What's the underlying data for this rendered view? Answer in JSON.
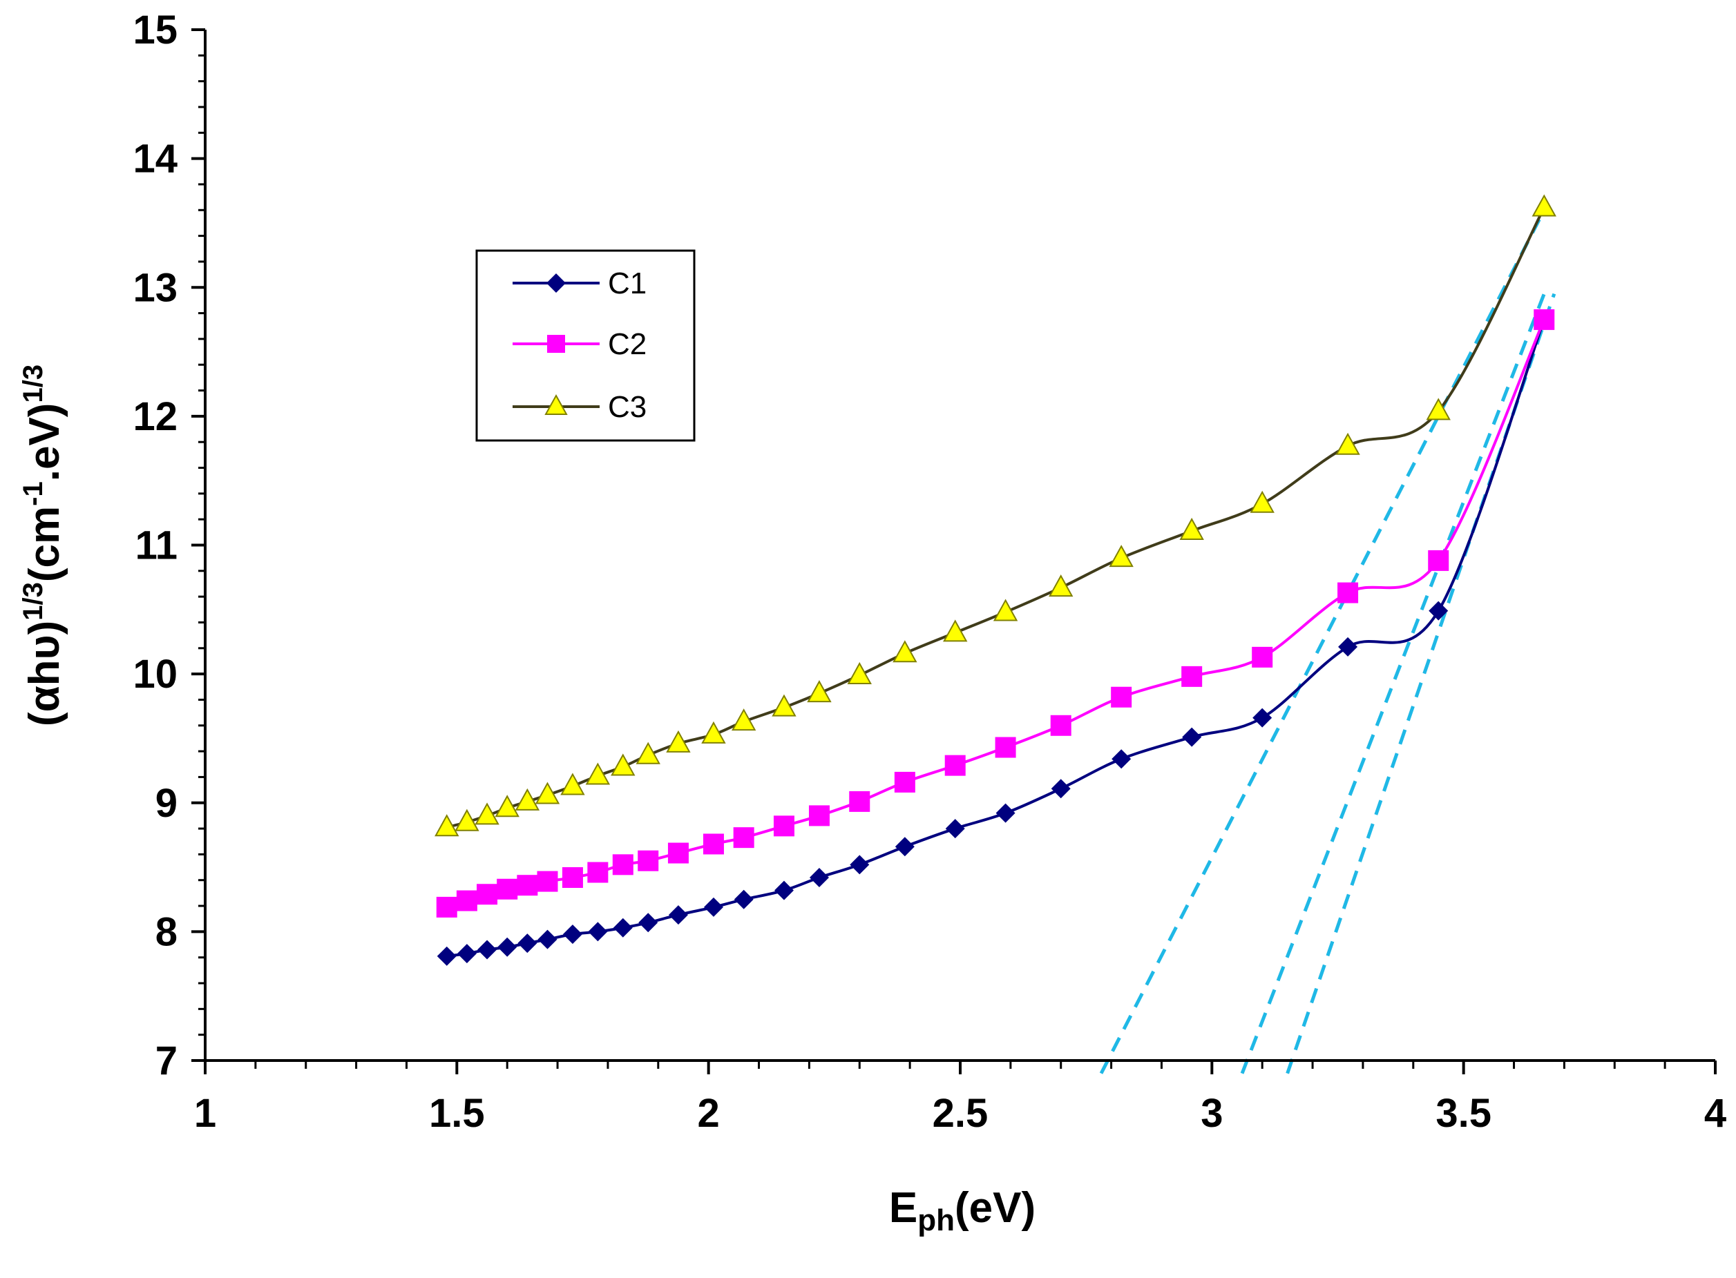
{
  "chart_data": {
    "type": "line",
    "title": "",
    "xlabel": {
      "main": "E",
      "sub": "ph",
      "rest": "(eV)"
    },
    "ylabel": {
      "part1": "(αhυ)",
      "sup1": "1/3",
      "part2": "(cm",
      "sup2": "-1",
      "part3": ".eV)",
      "sup3": "1/3"
    },
    "xlim": [
      1,
      4
    ],
    "ylim": [
      7,
      15
    ],
    "xticks": [
      1,
      1.5,
      2,
      2.5,
      3,
      3.5,
      4
    ],
    "xtick_labels": [
      "1",
      "1.5",
      "2",
      "2.5",
      "3",
      "3.5",
      "4"
    ],
    "yticks": [
      7,
      8,
      9,
      10,
      11,
      12,
      13,
      14,
      15
    ],
    "ytick_labels": [
      "7",
      "8",
      "9",
      "10",
      "11",
      "12",
      "13",
      "14",
      "15"
    ],
    "x_minor_step": 0.1,
    "y_minor_step": 0.2,
    "grid": false,
    "legend_position": "upper-left",
    "series": [
      {
        "name": "C1",
        "color": "#00007f",
        "marker": "diamond",
        "x": [
          1.48,
          1.52,
          1.56,
          1.6,
          1.64,
          1.68,
          1.73,
          1.78,
          1.83,
          1.88,
          1.94,
          2.01,
          2.07,
          2.15,
          2.22,
          2.3,
          2.39,
          2.49,
          2.59,
          2.7,
          2.82,
          2.96,
          3.1,
          3.27,
          3.45,
          3.66
        ],
        "y": [
          7.81,
          7.83,
          7.86,
          7.88,
          7.91,
          7.94,
          7.98,
          8.0,
          8.03,
          8.07,
          8.13,
          8.19,
          8.25,
          8.32,
          8.42,
          8.52,
          8.66,
          8.8,
          8.92,
          9.11,
          9.34,
          9.51,
          9.66,
          10.21,
          10.49,
          12.75
        ]
      },
      {
        "name": "C2",
        "color": "#ff00ff",
        "marker": "square",
        "x": [
          1.48,
          1.52,
          1.56,
          1.6,
          1.64,
          1.68,
          1.73,
          1.78,
          1.83,
          1.88,
          1.94,
          2.01,
          2.07,
          2.15,
          2.22,
          2.3,
          2.39,
          2.49,
          2.59,
          2.7,
          2.82,
          2.96,
          3.1,
          3.27,
          3.45,
          3.66
        ],
        "y": [
          8.19,
          8.24,
          8.29,
          8.33,
          8.36,
          8.39,
          8.42,
          8.46,
          8.52,
          8.55,
          8.61,
          8.68,
          8.73,
          8.82,
          8.9,
          9.01,
          9.16,
          9.29,
          9.43,
          9.6,
          9.82,
          9.98,
          10.13,
          10.63,
          10.88,
          12.75
        ]
      },
      {
        "name": "C3",
        "color": "#403c1a",
        "marker": "triangle",
        "marker_fill": "#ffff00",
        "x": [
          1.48,
          1.52,
          1.56,
          1.6,
          1.64,
          1.68,
          1.73,
          1.78,
          1.83,
          1.88,
          1.94,
          2.01,
          2.07,
          2.15,
          2.22,
          2.3,
          2.39,
          2.49,
          2.59,
          2.7,
          2.82,
          2.96,
          3.1,
          3.27,
          3.45,
          3.66
        ],
        "y": [
          8.81,
          8.85,
          8.9,
          8.96,
          9.01,
          9.06,
          9.13,
          9.21,
          9.28,
          9.37,
          9.46,
          9.53,
          9.63,
          9.74,
          9.85,
          9.99,
          10.16,
          10.32,
          10.48,
          10.67,
          10.9,
          11.11,
          11.32,
          11.77,
          12.04,
          13.62
        ]
      }
    ],
    "fit_lines": {
      "color": "#1fb8e6",
      "lines": [
        {
          "x": [
            2.78,
            3.66
          ],
          "y": [
            6.9,
            13.6
          ]
        },
        {
          "x": [
            3.06,
            3.66
          ],
          "y": [
            6.9,
            12.95
          ]
        },
        {
          "x": [
            3.15,
            3.68
          ],
          "y": [
            6.9,
            12.95
          ]
        }
      ]
    }
  }
}
